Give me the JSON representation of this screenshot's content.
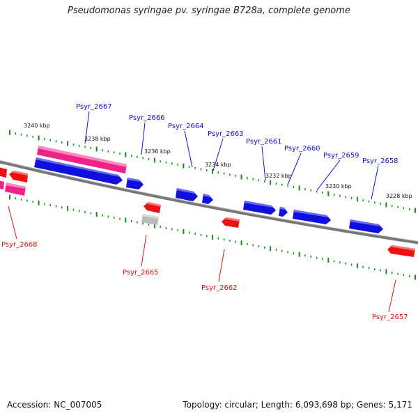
{
  "title": "Pseudomonas syringae pv. syringae B728a, complete genome",
  "footer": {
    "accession": "Accession: NC_007005",
    "summary": "Topology: circular; Length: 6,093,698 bp; Genes: 5,171"
  },
  "colors": {
    "forward_gene": "#1010dd",
    "reverse_gene": "#ee1111",
    "highlight_gene": "#ee2288",
    "grey_gene": "#bbbbbb",
    "backbone": "#888888",
    "ticks": "#1a8a1a",
    "forward_label": "#1010cc",
    "reverse_label": "#dd1111"
  },
  "scale_ticks": [
    {
      "label": "3240 kbp"
    },
    {
      "label": "3238 kbp"
    },
    {
      "label": "3236 kbp"
    },
    {
      "label": "3234 kbp"
    },
    {
      "label": "3232 kbp"
    },
    {
      "label": "3230 kbp"
    },
    {
      "label": "3228 kbp"
    }
  ],
  "forward_labels": [
    {
      "text": "Psyr_2667"
    },
    {
      "text": "Psyr_2666"
    },
    {
      "text": "Psyr_2664"
    },
    {
      "text": "Psyr_2663"
    },
    {
      "text": "Psyr_2661"
    },
    {
      "text": "Psyr_2660"
    },
    {
      "text": "Psyr_2659"
    },
    {
      "text": "Psyr_2658"
    }
  ],
  "reverse_labels": [
    {
      "text": "Psyr_2668"
    },
    {
      "text": "Psyr_2665"
    },
    {
      "text": "Psyr_2662"
    },
    {
      "text": "Psyr_2657"
    }
  ]
}
